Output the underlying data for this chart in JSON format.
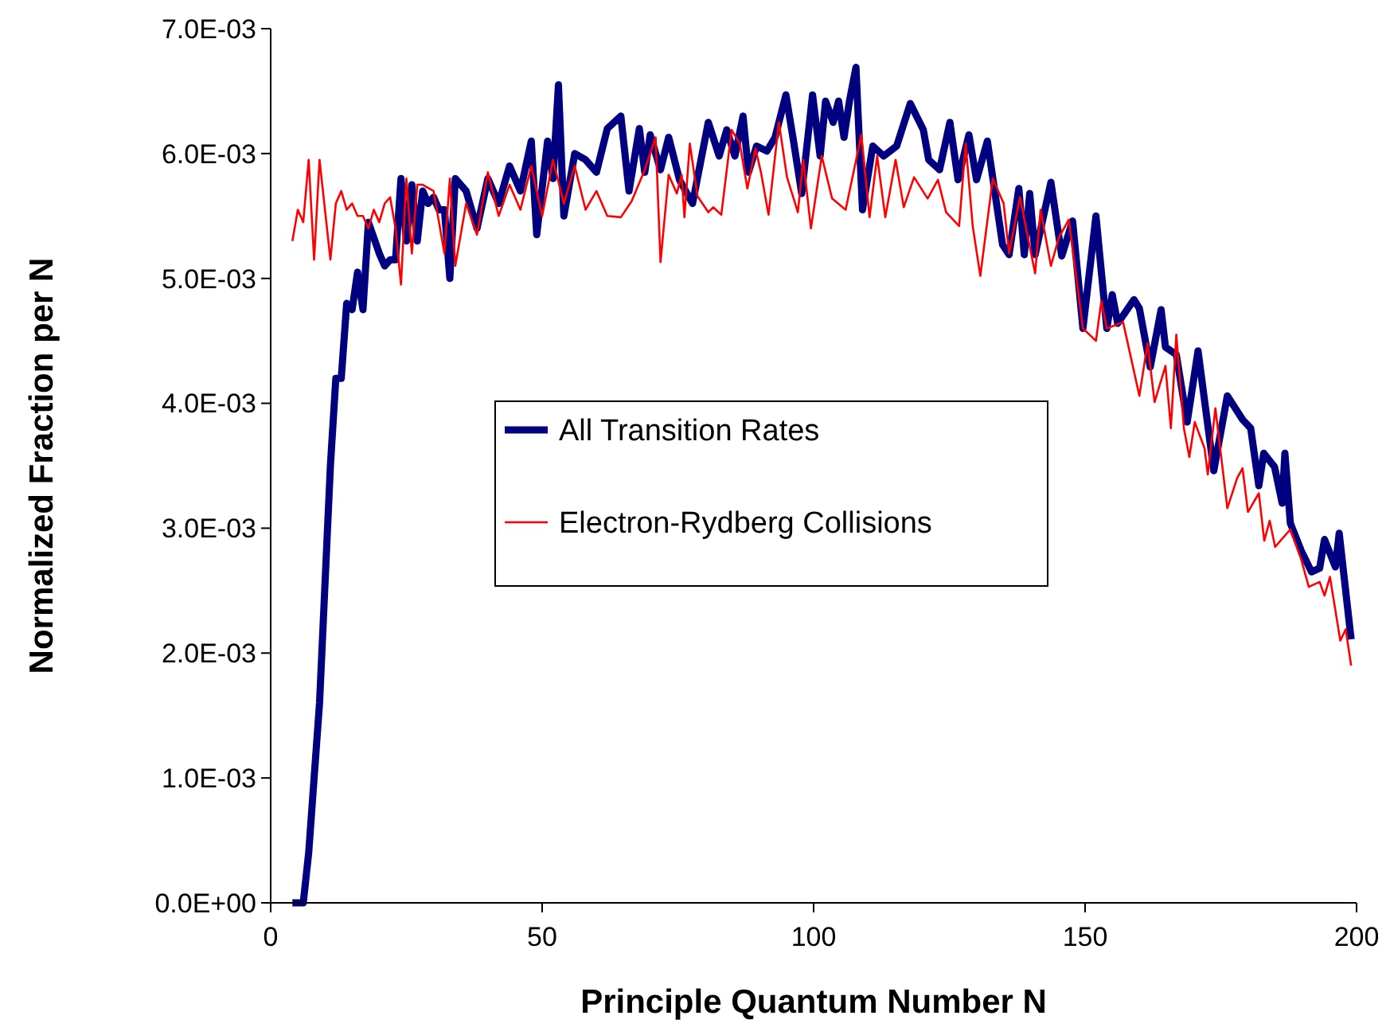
{
  "chart_data": {
    "type": "line",
    "xlabel": "Principle Quantum Number N",
    "ylabel": "Normalized Fraction per N",
    "xlim": [
      0,
      200
    ],
    "xticks": [
      0,
      50,
      100,
      150,
      200
    ],
    "ylim": [
      0,
      0.007
    ],
    "yticks": [
      {
        "value": 0,
        "label": "0.0E+00"
      },
      {
        "value": 0.001,
        "label": "1.0E-03"
      },
      {
        "value": 0.002,
        "label": "2.0E-03"
      },
      {
        "value": 0.003,
        "label": "3.0E-03"
      },
      {
        "value": 0.004,
        "label": "4.0E-03"
      },
      {
        "value": 0.005,
        "label": "5.0E-03"
      },
      {
        "value": 0.006,
        "label": "6.0E-03"
      },
      {
        "value": 0.007,
        "label": "7.0E-03"
      }
    ],
    "grid": false,
    "legend": "center",
    "marker": "none",
    "line_style": "solid",
    "series": [
      {
        "name": "All Transition Rates",
        "color": "#000080",
        "x": [
          4,
          6,
          7,
          9,
          11,
          12,
          13,
          14,
          15,
          16,
          17,
          18,
          20,
          21,
          22,
          23,
          24,
          25,
          26,
          27,
          28,
          29,
          30,
          31,
          32,
          33,
          34,
          36,
          38,
          40,
          42,
          44,
          46,
          48,
          49,
          51,
          52,
          53,
          54,
          56,
          58,
          60,
          62,
          64.5,
          66,
          67.9,
          68.9,
          69.9,
          71.8,
          73.3,
          75.3,
          77.7,
          80.6,
          82.6,
          84,
          85.5,
          87,
          88,
          89.5,
          91.4,
          92.9,
          94.9,
          96.3,
          97.8,
          99.8,
          101.2,
          102.2,
          103.6,
          104.6,
          105.6,
          106.6,
          107.8,
          109,
          110.9,
          112.9,
          115.3,
          117.8,
          120.2,
          121.2,
          123.2,
          125.1,
          126.6,
          128.6,
          130,
          132,
          134.8,
          136,
          137.8,
          138.8,
          139.8,
          140.8,
          143.7,
          145.7,
          147.7,
          149.6,
          152,
          154,
          155,
          156,
          159,
          160,
          162,
          164,
          164.8,
          166.8,
          168.8,
          170.8,
          173.7,
          176.2,
          179,
          180.5,
          182,
          182.9,
          184.9,
          186.3,
          186.8,
          187.8,
          189.8,
          191.7,
          193.2,
          194.1,
          196.1,
          196.8,
          199
        ],
        "values": [
          0,
          0,
          0.0004,
          0.0016,
          0.0035,
          0.0042,
          0.0042,
          0.0048,
          0.00475,
          0.00505,
          0.00475,
          0.00545,
          0.0052,
          0.0051,
          0.00515,
          0.00515,
          0.0058,
          0.0053,
          0.00575,
          0.0053,
          0.0057,
          0.0056,
          0.00565,
          0.00555,
          0.00555,
          0.005,
          0.0058,
          0.0057,
          0.0054,
          0.0058,
          0.0056,
          0.0059,
          0.0057,
          0.0061,
          0.00535,
          0.0061,
          0.0058,
          0.00655,
          0.0055,
          0.006,
          0.00595,
          0.00585,
          0.0062,
          0.0063,
          0.0057,
          0.0062,
          0.00585,
          0.00615,
          0.00587,
          0.00613,
          0.00579,
          0.0056,
          0.00625,
          0.00598,
          0.00619,
          0.00598,
          0.0063,
          0.00585,
          0.00606,
          0.00602,
          0.00613,
          0.00647,
          0.0061,
          0.00568,
          0.00647,
          0.00598,
          0.00642,
          0.00625,
          0.00642,
          0.00613,
          0.00642,
          0.00669,
          0.00555,
          0.00606,
          0.00598,
          0.00606,
          0.0064,
          0.00619,
          0.00595,
          0.00587,
          0.00625,
          0.00579,
          0.00615,
          0.00579,
          0.0061,
          0.00527,
          0.00519,
          0.00572,
          0.00519,
          0.00568,
          0.00519,
          0.00577,
          0.00518,
          0.00546,
          0.0046,
          0.0055,
          0.0046,
          0.00487,
          0.00464,
          0.00483,
          0.00476,
          0.00429,
          0.00475,
          0.00445,
          0.00439,
          0.00385,
          0.00442,
          0.00346,
          0.00406,
          0.00387,
          0.0038,
          0.00334,
          0.0036,
          0.00349,
          0.0032,
          0.0036,
          0.00304,
          0.00282,
          0.00265,
          0.00268,
          0.00291,
          0.00269,
          0.00296,
          0.00211
        ]
      },
      {
        "name": "Electron-Rydberg Collisions",
        "color": "#ff0000",
        "x": [
          4,
          5,
          6,
          7,
          8,
          9,
          11,
          12,
          13,
          14,
          15,
          16,
          17,
          18,
          19,
          20,
          21,
          22,
          23,
          24,
          25,
          26,
          27,
          28,
          30,
          32,
          33,
          34,
          36,
          38,
          40,
          42,
          44,
          46,
          48,
          50,
          52,
          54,
          56,
          58,
          60,
          62,
          64.5,
          66.5,
          68.9,
          70.9,
          71.8,
          73.3,
          74.8,
          75.7,
          76.2,
          77.2,
          78.6,
          80.6,
          81.5,
          83,
          84.9,
          86.4,
          87.8,
          89.3,
          90.3,
          91.7,
          93.6,
          95.1,
          97.1,
          98.1,
          99.5,
          101.5,
          103.4,
          105.9,
          108.8,
          110.3,
          111.7,
          113.2,
          115.1,
          116.6,
          118.5,
          121,
          122.9,
          124.4,
          126.8,
          128,
          129.3,
          130.7,
          133,
          135,
          136,
          138,
          140.8,
          141.8,
          143.7,
          145.2,
          147,
          149.6,
          152,
          153,
          154,
          157,
          160,
          161.5,
          162.8,
          164.8,
          165.8,
          166.8,
          168.2,
          169.2,
          170.2,
          172,
          172.6,
          174,
          176.2,
          178,
          179,
          180,
          182,
          183,
          184,
          185,
          187.8,
          189.8,
          191.2,
          193.2,
          194.1,
          195.1,
          197,
          198,
          199
        ],
        "values": [
          0.0053,
          0.00555,
          0.00545,
          0.00595,
          0.00515,
          0.00595,
          0.00515,
          0.0056,
          0.0057,
          0.00555,
          0.0056,
          0.0055,
          0.0055,
          0.0054,
          0.00555,
          0.00545,
          0.0056,
          0.00565,
          0.0054,
          0.00495,
          0.0058,
          0.0052,
          0.00575,
          0.00575,
          0.0057,
          0.0052,
          0.0058,
          0.0051,
          0.0056,
          0.00535,
          0.00585,
          0.0055,
          0.00575,
          0.00555,
          0.0059,
          0.0055,
          0.00595,
          0.0056,
          0.0059,
          0.00555,
          0.0057,
          0.0055,
          0.00549,
          0.00562,
          0.00587,
          0.00613,
          0.00513,
          0.00583,
          0.00568,
          0.00583,
          0.00549,
          0.00608,
          0.00566,
          0.00553,
          0.00557,
          0.00551,
          0.00619,
          0.00608,
          0.00572,
          0.00604,
          0.00585,
          0.00551,
          0.00625,
          0.00581,
          0.00553,
          0.00595,
          0.0054,
          0.00598,
          0.00564,
          0.00555,
          0.00615,
          0.00549,
          0.00598,
          0.00549,
          0.00595,
          0.00557,
          0.00581,
          0.00564,
          0.00579,
          0.00553,
          0.00542,
          0.00608,
          0.00542,
          0.00502,
          0.0058,
          0.0056,
          0.0052,
          0.00565,
          0.00504,
          0.00555,
          0.0051,
          0.00533,
          0.00547,
          0.0046,
          0.0045,
          0.00482,
          0.0046,
          0.00465,
          0.00406,
          0.00448,
          0.00401,
          0.0043,
          0.0038,
          0.00455,
          0.0038,
          0.00357,
          0.00385,
          0.00364,
          0.00343,
          0.00396,
          0.00316,
          0.0034,
          0.00348,
          0.00313,
          0.00328,
          0.0029,
          0.00306,
          0.00285,
          0.00299,
          0.00275,
          0.00253,
          0.00257,
          0.00246,
          0.00261,
          0.0021,
          0.00219,
          0.0019
        ]
      }
    ]
  }
}
